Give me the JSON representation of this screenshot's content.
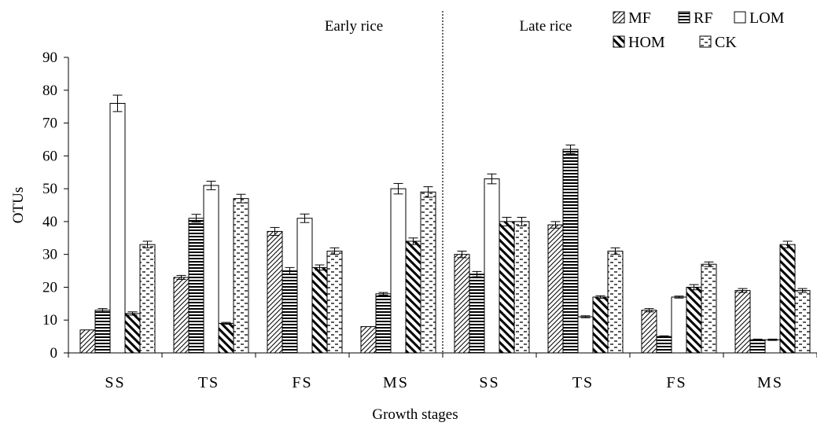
{
  "chart_data": {
    "type": "bar",
    "title": "",
    "xlabel": "Growth stages",
    "ylabel": "OTUs",
    "ylim": [
      0,
      90
    ],
    "yticks": [
      0,
      10,
      20,
      30,
      40,
      50,
      60,
      70,
      80,
      90
    ],
    "grid": false,
    "legend_position": "top-right",
    "groups": [
      {
        "label": "Early rice",
        "categories": [
          "SS",
          "TS",
          "FS",
          "MS"
        ]
      },
      {
        "label": "Late rice",
        "categories": [
          "SS",
          "TS",
          "FS",
          "MS"
        ]
      }
    ],
    "categories": [
      "SS",
      "TS",
      "FS",
      "MS",
      "SS",
      "TS",
      "FS",
      "MS"
    ],
    "series": [
      {
        "name": "MF",
        "pattern": "diagonal-forward",
        "values": [
          7,
          23,
          37,
          8,
          30,
          39,
          13,
          19
        ],
        "errors": [
          0,
          0.6,
          1.2,
          0,
          1,
          1,
          0.5,
          0.6
        ]
      },
      {
        "name": "RF",
        "pattern": "horizontal",
        "values": [
          13,
          41,
          25,
          18,
          24,
          62,
          5,
          4
        ],
        "errors": [
          0.5,
          1.2,
          1,
          0.4,
          0.8,
          1.3,
          0.2,
          0.2
        ]
      },
      {
        "name": "LOM",
        "pattern": "none",
        "values": [
          76,
          51,
          41,
          50,
          53,
          11,
          17,
          4
        ],
        "errors": [
          2.5,
          1.3,
          1.3,
          1.6,
          1.5,
          0.3,
          0.3,
          0.2
        ]
      },
      {
        "name": "HOM",
        "pattern": "diagonal-backward-thick",
        "values": [
          12,
          9,
          26,
          34,
          40,
          17,
          20,
          33
        ],
        "errors": [
          0.5,
          0.3,
          0.8,
          1,
          1.3,
          0.4,
          0.8,
          1
        ]
      },
      {
        "name": "CK",
        "pattern": "dashes",
        "values": [
          33,
          47,
          31,
          49,
          40,
          31,
          27,
          19
        ],
        "errors": [
          1,
          1.3,
          1,
          1.6,
          1.3,
          1,
          0.7,
          0.6
        ]
      }
    ]
  }
}
